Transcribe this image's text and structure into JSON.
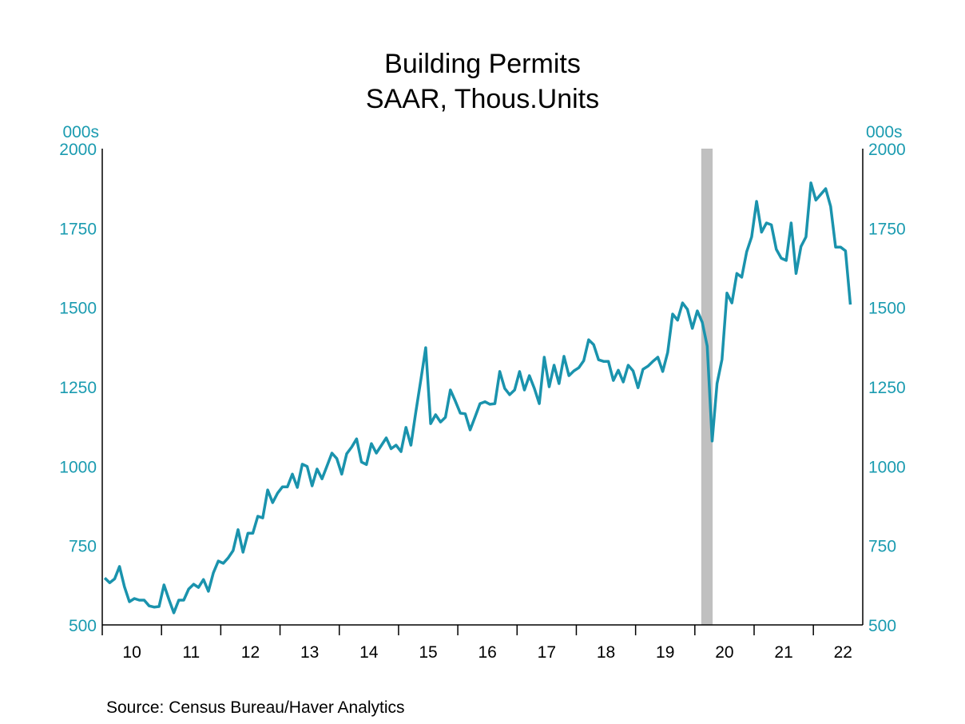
{
  "title": "Building Permits",
  "subtitle": "SAAR, Thous.Units",
  "source": "Source:  Census Bureau/Haver Analytics",
  "colors": {
    "line": "#1a93ad",
    "axis_text": "#1a9bb0",
    "recession": "#c0c0c0"
  },
  "chart_data": {
    "type": "line",
    "title": "Building Permits",
    "subtitle": "SAAR, Thous.Units",
    "ylabel_left": "000s",
    "ylabel_right": "000s",
    "ylim": [
      500,
      2000
    ],
    "yticks": [
      500,
      750,
      1000,
      1250,
      1500,
      1750,
      2000
    ],
    "xlim": [
      "2010-01",
      "2022-10"
    ],
    "xtick_labels": [
      "10",
      "11",
      "12",
      "13",
      "14",
      "15",
      "16",
      "17",
      "18",
      "19",
      "20",
      "21",
      "22"
    ],
    "grid": false,
    "frequency": "monthly",
    "start": "2010-01",
    "recession_shading": [
      {
        "start": "2020-02",
        "end": "2020-04"
      }
    ],
    "series": [
      {
        "values": [
          648,
          633,
          645,
          684,
          620,
          573,
          583,
          578,
          578,
          560,
          556,
          558,
          626,
          580,
          538,
          578,
          578,
          613,
          628,
          618,
          643,
          606,
          664,
          701,
          694,
          711,
          734,
          800,
          729,
          789,
          789,
          842,
          837,
          925,
          885,
          915,
          935,
          935,
          975,
          933,
          1006,
          999,
          938,
          991,
          960,
          1000,
          1041,
          1024,
          975,
          1039,
          1060,
          1086,
          1013,
          1005,
          1071,
          1041,
          1065,
          1089,
          1055,
          1066,
          1046,
          1122,
          1066,
          1170,
          1270,
          1373,
          1134,
          1162,
          1139,
          1154,
          1240,
          1205,
          1167,
          1165,
          1114,
          1155,
          1197,
          1203,
          1195,
          1197,
          1298,
          1245,
          1225,
          1240,
          1298,
          1240,
          1285,
          1245,
          1197,
          1343,
          1250,
          1318,
          1260,
          1346,
          1285,
          1300,
          1310,
          1332,
          1398,
          1383,
          1335,
          1330,
          1330,
          1270,
          1302,
          1265,
          1318,
          1300,
          1247,
          1305,
          1315,
          1330,
          1343,
          1298,
          1358,
          1479,
          1460,
          1514,
          1494,
          1434,
          1489,
          1453,
          1378,
          1079,
          1260,
          1336,
          1545,
          1514,
          1607,
          1595,
          1675,
          1722,
          1834,
          1737,
          1766,
          1760,
          1683,
          1655,
          1648,
          1766,
          1607,
          1692,
          1722,
          1892,
          1838,
          1856,
          1874,
          1818,
          1690,
          1690,
          1678,
          1509
        ]
      }
    ]
  }
}
